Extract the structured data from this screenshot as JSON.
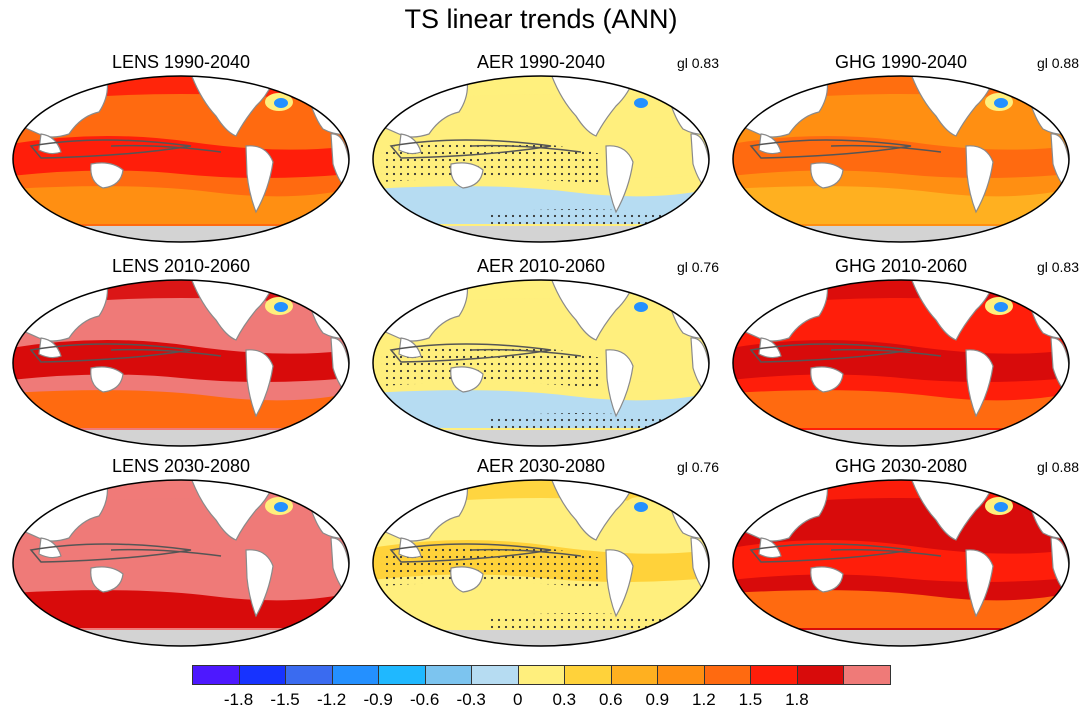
{
  "title": "TS linear trends (ANN)",
  "colors": {
    "ocean_warm": [
      "#ffef7d",
      "#ffd23a",
      "#ffb020",
      "#ff8f12",
      "#ff6a10",
      "#ff1e0a",
      "#d80b0b",
      "#ef7a78"
    ],
    "ocean_cool": [
      "#b6dcf2",
      "#7cc4ef",
      "#1fb8ff",
      "#2490ff",
      "#3a6bf0",
      "#1733ff",
      "#4d18ff"
    ],
    "land": "#ffffff",
    "antarctica": "#d3d3d3",
    "contour": "#555555"
  },
  "panels": [
    {
      "title": "LENS 1990-2040",
      "gl": null,
      "base": "#ff6a10",
      "band": "#ff1e0a",
      "south": "#ff8f12",
      "stipple": false
    },
    {
      "title": "AER 1990-2040",
      "gl": "gl 0.83",
      "base": "#ffef7d",
      "band": "#ffef7d",
      "south": "#b6dcf2",
      "stipple": true
    },
    {
      "title": "GHG 1990-2040",
      "gl": "gl 0.88",
      "base": "#ff8f12",
      "band": "#ff6a10",
      "south": "#ffb020",
      "stipple": false
    },
    {
      "title": "LENS 2010-2060",
      "gl": null,
      "base": "#ef7a78",
      "band": "#d80b0b",
      "south": "#ff6a10",
      "stipple": false
    },
    {
      "title": "AER 2010-2060",
      "gl": "gl 0.76",
      "base": "#ffef7d",
      "band": "#ffef7d",
      "south": "#b6dcf2",
      "stipple": true
    },
    {
      "title": "GHG 2010-2060",
      "gl": "gl 0.83",
      "base": "#ff1e0a",
      "band": "#d80b0b",
      "south": "#ff6a10",
      "stipple": false
    },
    {
      "title": "LENS 2030-2080",
      "gl": null,
      "base": "#ef7a78",
      "band": "#ef7a78",
      "south": "#d80b0b",
      "stipple": false
    },
    {
      "title": "AER 2030-2080",
      "gl": "gl 0.76",
      "base": "#ffef7d",
      "band": "#ffd23a",
      "south": "#ffef7d",
      "stipple": true
    },
    {
      "title": "GHG 2030-2080",
      "gl": "gl 0.88",
      "base": "#d80b0b",
      "band": "#ff1e0a",
      "south": "#ff6a10",
      "stipple": false
    }
  ],
  "colorbar": {
    "colors": [
      "#4d18ff",
      "#1733ff",
      "#3a6bf0",
      "#2490ff",
      "#1fb8ff",
      "#7cc4ef",
      "#b6dcf2",
      "#ffef7d",
      "#ffd23a",
      "#ffb020",
      "#ff8f12",
      "#ff6a10",
      "#ff1e0a",
      "#d80b0b",
      "#ef7a78"
    ],
    "labels": [
      "-1.8",
      "-1.5",
      "-1.2",
      "-0.9",
      "-0.6",
      "-0.3",
      "0",
      "0.3",
      "0.6",
      "0.9",
      "1.2",
      "1.5",
      "1.8"
    ]
  }
}
